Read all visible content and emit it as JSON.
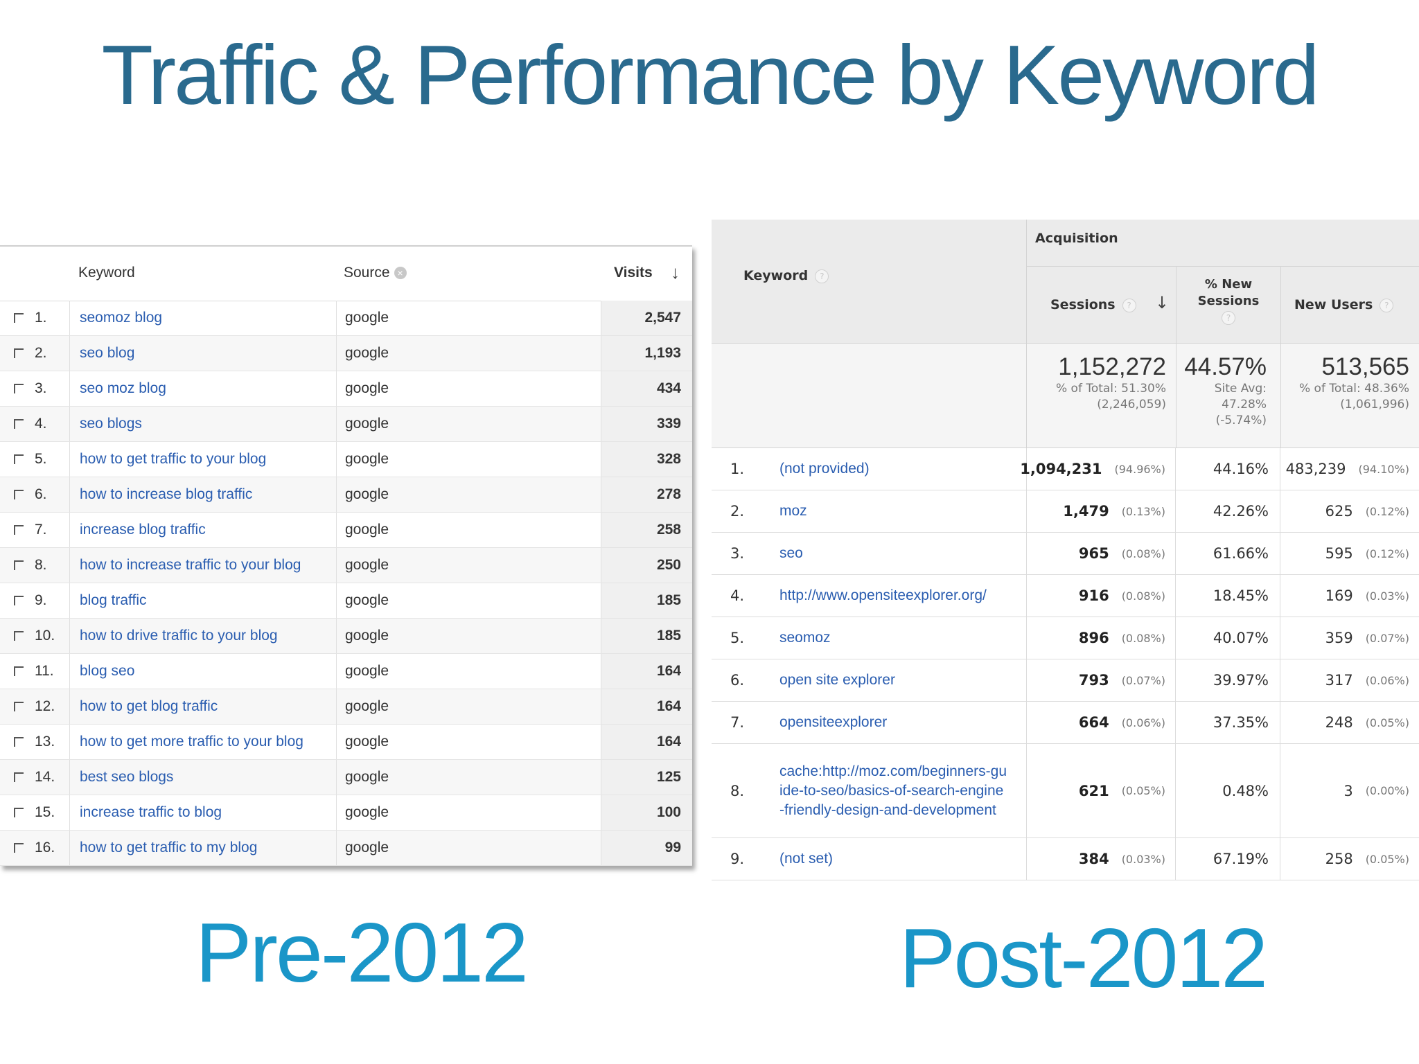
{
  "title": "Traffic & Performance by Keyword",
  "captions": {
    "pre": "Pre-2012",
    "post": "Post-2012"
  },
  "pre_table": {
    "headers": {
      "keyword": "Keyword",
      "source": "Source",
      "visits": "Visits"
    },
    "rows": [
      {
        "n": "1.",
        "keyword": "seomoz blog",
        "source": "google",
        "visits": "2,547"
      },
      {
        "n": "2.",
        "keyword": "seo blog",
        "source": "google",
        "visits": "1,193"
      },
      {
        "n": "3.",
        "keyword": "seo moz blog",
        "source": "google",
        "visits": "434"
      },
      {
        "n": "4.",
        "keyword": "seo blogs",
        "source": "google",
        "visits": "339"
      },
      {
        "n": "5.",
        "keyword": "how to get traffic to your blog",
        "source": "google",
        "visits": "328"
      },
      {
        "n": "6.",
        "keyword": "how to increase blog traffic",
        "source": "google",
        "visits": "278"
      },
      {
        "n": "7.",
        "keyword": "increase blog traffic",
        "source": "google",
        "visits": "258"
      },
      {
        "n": "8.",
        "keyword": "how to increase traffic to your blog",
        "source": "google",
        "visits": "250"
      },
      {
        "n": "9.",
        "keyword": "blog traffic",
        "source": "google",
        "visits": "185"
      },
      {
        "n": "10.",
        "keyword": "how to drive traffic to your blog",
        "source": "google",
        "visits": "185"
      },
      {
        "n": "11.",
        "keyword": "blog seo",
        "source": "google",
        "visits": "164"
      },
      {
        "n": "12.",
        "keyword": "how to get blog traffic",
        "source": "google",
        "visits": "164"
      },
      {
        "n": "13.",
        "keyword": "how to get more traffic to your blog",
        "source": "google",
        "visits": "164"
      },
      {
        "n": "14.",
        "keyword": "best seo blogs",
        "source": "google",
        "visits": "125"
      },
      {
        "n": "15.",
        "keyword": "increase traffic to blog",
        "source": "google",
        "visits": "100"
      },
      {
        "n": "16.",
        "keyword": "how to get traffic to my blog",
        "source": "google",
        "visits": "99"
      }
    ]
  },
  "post_table": {
    "headers": {
      "keyword": "Keyword",
      "group": "Acquisition",
      "sessions": "Sessions",
      "pct_new_line1": "% New",
      "pct_new_line2": "Sessions",
      "new_users": "New Users"
    },
    "summary": {
      "sessions": "1,152,272",
      "sessions_line1": "% of Total: 51.30%",
      "sessions_line2": "(2,246,059)",
      "pct_new": "44.57%",
      "pct_new_line1": "Site Avg:",
      "pct_new_line2": "47.28%",
      "pct_new_line3": "(-5.74%)",
      "new_users": "513,565",
      "new_users_line1": "% of Total: 48.36%",
      "new_users_line2": "(1,061,996)"
    },
    "rows": [
      {
        "n": "1.",
        "keyword": "(not provided)",
        "sessions": "1,094,231",
        "sessions_pct": "(94.96%)",
        "pct_new": "44.16%",
        "new_users": "483,239",
        "new_users_pct": "(94.10%)"
      },
      {
        "n": "2.",
        "keyword": "moz",
        "sessions": "1,479",
        "sessions_pct": "(0.13%)",
        "pct_new": "42.26%",
        "new_users": "625",
        "new_users_pct": "(0.12%)"
      },
      {
        "n": "3.",
        "keyword": "seo",
        "sessions": "965",
        "sessions_pct": "(0.08%)",
        "pct_new": "61.66%",
        "new_users": "595",
        "new_users_pct": "(0.12%)"
      },
      {
        "n": "4.",
        "keyword": "http://www.opensiteexplorer.org/",
        "sessions": "916",
        "sessions_pct": "(0.08%)",
        "pct_new": "18.45%",
        "new_users": "169",
        "new_users_pct": "(0.03%)"
      },
      {
        "n": "5.",
        "keyword": "seomoz",
        "sessions": "896",
        "sessions_pct": "(0.08%)",
        "pct_new": "40.07%",
        "new_users": "359",
        "new_users_pct": "(0.07%)"
      },
      {
        "n": "6.",
        "keyword": "open site explorer",
        "sessions": "793",
        "sessions_pct": "(0.07%)",
        "pct_new": "39.97%",
        "new_users": "317",
        "new_users_pct": "(0.06%)"
      },
      {
        "n": "7.",
        "keyword": "opensiteexplorer",
        "sessions": "664",
        "sessions_pct": "(0.06%)",
        "pct_new": "37.35%",
        "new_users": "248",
        "new_users_pct": "(0.05%)"
      },
      {
        "n": "8.",
        "keyword": "cache:http://moz.com/beginners-guide-to-seo/basics-of-search-engine-friendly-design-and-development",
        "sessions": "621",
        "sessions_pct": "(0.05%)",
        "pct_new": "0.48%",
        "new_users": "3",
        "new_users_pct": "(0.00%)"
      },
      {
        "n": "9.",
        "keyword": "(not set)",
        "sessions": "384",
        "sessions_pct": "(0.03%)",
        "pct_new": "67.19%",
        "new_users": "258",
        "new_users_pct": "(0.05%)"
      }
    ]
  },
  "icons": {
    "sort": "arrow-down-icon",
    "remove": "close-circle-icon",
    "help": "help-icon",
    "checkbox": "checkbox-icon"
  },
  "colors": {
    "title": "#2a6a8e",
    "caption": "#1a96c8",
    "link": "#2a5db0"
  }
}
